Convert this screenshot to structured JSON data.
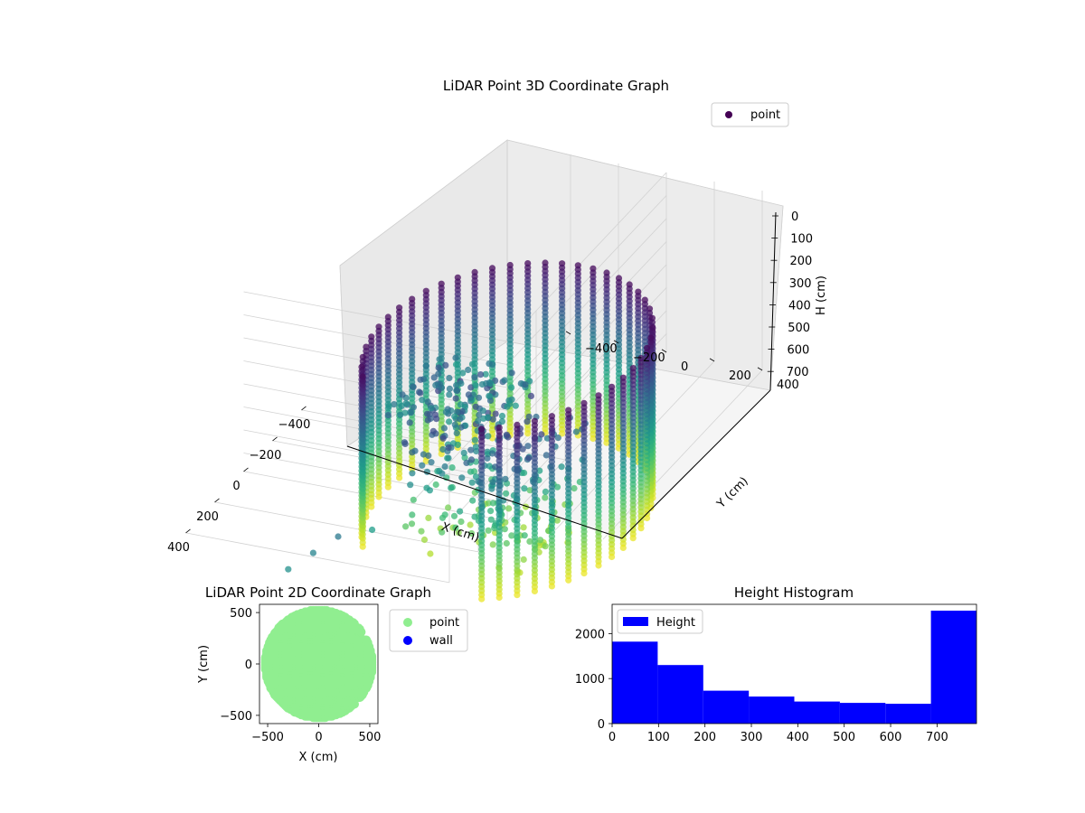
{
  "chart_data": [
    {
      "type": "scatter",
      "projection": "3d",
      "title": "LiDAR Point 3D Coordinate Graph",
      "xlabel": "X (cm)",
      "ylabel": "Y (cm)",
      "zlabel": "H (cm)",
      "xticks": [
        "−400",
        "−200",
        "0",
        "200",
        "400"
      ],
      "yticks": [
        "−400",
        "−200",
        "0",
        "200",
        "400"
      ],
      "zticks": [
        "0",
        "100",
        "200",
        "300",
        "400",
        "500",
        "600",
        "700"
      ],
      "xlim": [
        -550,
        550
      ],
      "ylim": [
        -550,
        550
      ],
      "zlim": [
        780,
        0
      ],
      "z_axis_inverted": true,
      "colormap": "viridis",
      "legend": {
        "entries": [
          "point"
        ],
        "location": "upper right"
      },
      "series": [
        {
          "name": "point",
          "shape": "wall ring around origin, radius ~520, h 0-760; inner structure near x 0-400",
          "sample_points": [
            {
              "x": -520,
              "y": 0,
              "h": 50
            },
            {
              "x": -520,
              "y": 0,
              "h": 700
            },
            {
              "x": 0,
              "y": 520,
              "h": 50
            },
            {
              "x": 0,
              "y": 520,
              "h": 700
            },
            {
              "x": 0,
              "y": -520,
              "h": 700
            },
            {
              "x": 370,
              "y": 370,
              "h": 100
            },
            {
              "x": 200,
              "y": 100,
              "h": 300
            },
            {
              "x": 300,
              "y": -100,
              "h": 450
            },
            {
              "x": 420,
              "y": 250,
              "h": 650
            },
            {
              "x": 500,
              "y": -350,
              "h": 720
            }
          ]
        }
      ]
    },
    {
      "type": "scatter",
      "title": "LiDAR Point 2D Coordinate Graph",
      "xlabel": "X (cm)",
      "ylabel": "Y (cm)",
      "xticks": [
        "−500",
        "0",
        "500"
      ],
      "yticks": [
        "−500",
        "0",
        "500"
      ],
      "xlim": [
        -580,
        580
      ],
      "ylim": [
        -580,
        580
      ],
      "legend": {
        "entries": [
          "point",
          "wall"
        ],
        "location": "outside right"
      },
      "series": [
        {
          "name": "point",
          "color": "#90ee90",
          "shape": "disc of radius ~520 clipped at x 260-560 on right, with rod-like protrusions",
          "sample_points": [
            {
              "x": -520,
              "y": 0
            },
            {
              "x": 0,
              "y": 520
            },
            {
              "x": 0,
              "y": -520
            },
            {
              "x": 250,
              "y": 450
            },
            {
              "x": 500,
              "y": 350
            },
            {
              "x": 500,
              "y": -250
            },
            {
              "x": 450,
              "y": -450
            }
          ]
        },
        {
          "name": "wall",
          "color": "#0000ff",
          "points": []
        }
      ]
    },
    {
      "type": "bar",
      "title": "Height Histogram",
      "xlabel": "",
      "ylabel": "",
      "xticks": [
        "0",
        "100",
        "200",
        "300",
        "400",
        "500",
        "600",
        "700"
      ],
      "yticks": [
        "0",
        "1000",
        "2000"
      ],
      "xlim": [
        0,
        785
      ],
      "ylim": [
        0,
        2650
      ],
      "legend": {
        "entries": [
          "Height"
        ],
        "location": "upper left"
      },
      "bins": [
        [
          0,
          98.125
        ],
        [
          98.125,
          196.25
        ],
        [
          196.25,
          294.375
        ],
        [
          294.375,
          392.5
        ],
        [
          392.5,
          490.625
        ],
        [
          490.625,
          588.75
        ],
        [
          588.75,
          686.875
        ],
        [
          686.875,
          785
        ]
      ],
      "values": [
        1820,
        1300,
        730,
        600,
        490,
        460,
        440,
        2510
      ],
      "color": "#0000ff"
    }
  ]
}
